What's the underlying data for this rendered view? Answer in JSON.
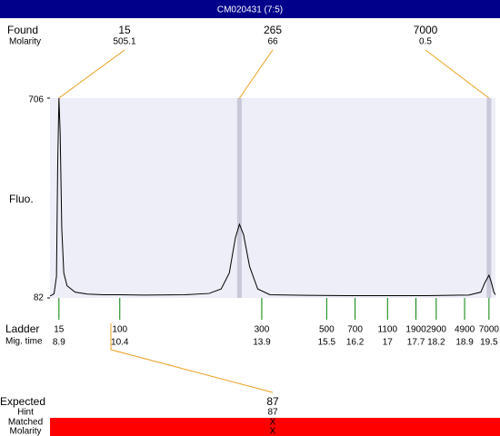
{
  "chart_data": {
    "type": "line",
    "title": "CM020431 (7:5)",
    "y_label": "Fluo.",
    "x": [
      8.68,
      8.78,
      8.84,
      8.87,
      8.9,
      8.93,
      8.97,
      9.02,
      9.1,
      9.3,
      9.6,
      10.0,
      10.4,
      11,
      12,
      12.6,
      12.9,
      13.1,
      13.25,
      13.35,
      13.45,
      13.6,
      13.8,
      14.1,
      15,
      16,
      17,
      18,
      19,
      19.3,
      19.4,
      19.5,
      19.56,
      19.62,
      19.66
    ],
    "values": [
      88,
      95,
      150,
      500,
      706,
      600,
      300,
      160,
      120,
      100,
      94,
      92,
      92,
      91,
      92,
      96,
      110,
      160,
      270,
      312,
      280,
      180,
      110,
      92,
      90,
      89,
      89,
      89,
      91,
      100,
      130,
      153,
      130,
      100,
      92
    ],
    "color": "#000000",
    "xlim": [
      8.68,
      19.66
    ],
    "ylim": [
      82,
      706
    ],
    "yticks": [
      82,
      706
    ],
    "found": {
      "label": "Found",
      "sub_label": "Molarity",
      "peaks": [
        {
          "size": 15,
          "molarity": 505.1,
          "mig_time": 8.9
        },
        {
          "size": 265,
          "molarity": 66,
          "mig_time": 13.35
        },
        {
          "size": 7000,
          "molarity": 0.5,
          "mig_time": 19.5
        }
      ]
    },
    "ladder": {
      "label": "Ladder",
      "sub_label": "Mig. time",
      "sizes": [
        15,
        100,
        300,
        500,
        700,
        1100,
        1900,
        2900,
        4900,
        7000
      ],
      "mig_times": [
        8.9,
        10.4,
        13.9,
        15.5,
        16.2,
        17,
        17.7,
        18.2,
        18.9,
        19.5
      ]
    },
    "expected": {
      "label": "Expected",
      "value": 87,
      "rows": [
        {
          "label": "Hint",
          "value": 87
        },
        {
          "label": "Matched",
          "value": "X"
        },
        {
          "label": "Molarity",
          "value": "X"
        }
      ]
    }
  }
}
